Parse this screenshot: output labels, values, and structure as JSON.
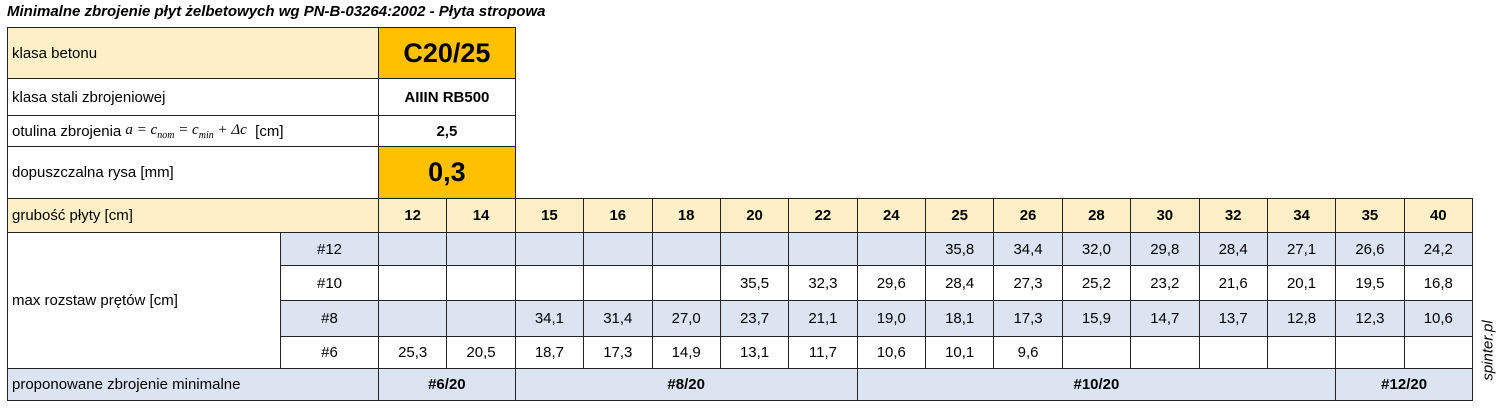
{
  "title": "Minimalne zbrojenie płyt żelbetowych wg PN-B-03264:2002 - Płyta stropowa",
  "params": [
    {
      "label": "klasa betonu",
      "value": "C20/25"
    },
    {
      "label": "klasa stali zbrojeniowej",
      "value": "AIIIN RB500"
    },
    {
      "label": "otulina zbrojenia",
      "formula": [
        "a = c",
        "nom",
        " = c",
        "min",
        " + Δc"
      ],
      "unit": "[cm]",
      "value": "2,5"
    },
    {
      "label": "dopuszczalna rysa [mm]",
      "value": "0,3"
    }
  ],
  "thickness": {
    "label": "grubość płyty [cm]",
    "values": [
      12,
      14,
      15,
      16,
      18,
      20,
      22,
      24,
      25,
      26,
      28,
      30,
      32,
      34,
      35,
      40
    ]
  },
  "spacing": {
    "label": "max rozstaw prętów [cm]",
    "rows": [
      {
        "bar": "#12",
        "values": [
          null,
          null,
          null,
          null,
          null,
          null,
          null,
          null,
          "35,8",
          "34,4",
          "32,0",
          "29,8",
          "28,4",
          "27,1",
          "26,6",
          "24,2"
        ]
      },
      {
        "bar": "#10",
        "values": [
          null,
          null,
          null,
          null,
          null,
          "35,5",
          "32,3",
          "29,6",
          "28,4",
          "27,3",
          "25,2",
          "23,2",
          "21,6",
          "20,1",
          "19,5",
          "16,8"
        ]
      },
      {
        "bar": "#8",
        "values": [
          null,
          null,
          "34,1",
          "31,4",
          "27,0",
          "23,7",
          "21,1",
          "19,0",
          "18,1",
          "17,3",
          "15,9",
          "14,7",
          "13,7",
          "12,8",
          "12,3",
          "10,6"
        ]
      },
      {
        "bar": "#6",
        "values": [
          "25,3",
          "20,5",
          "18,7",
          "17,3",
          "14,9",
          "13,1",
          "11,7",
          "10,6",
          "10,1",
          "9,6",
          null,
          null,
          null,
          null,
          null,
          null
        ]
      }
    ]
  },
  "proposed": {
    "label": "proponowane zbrojenie minimalne",
    "values": [
      "#6/20",
      "#8/20",
      "#10/20",
      "#12/20"
    ]
  },
  "watermark": "spinter.pl"
}
